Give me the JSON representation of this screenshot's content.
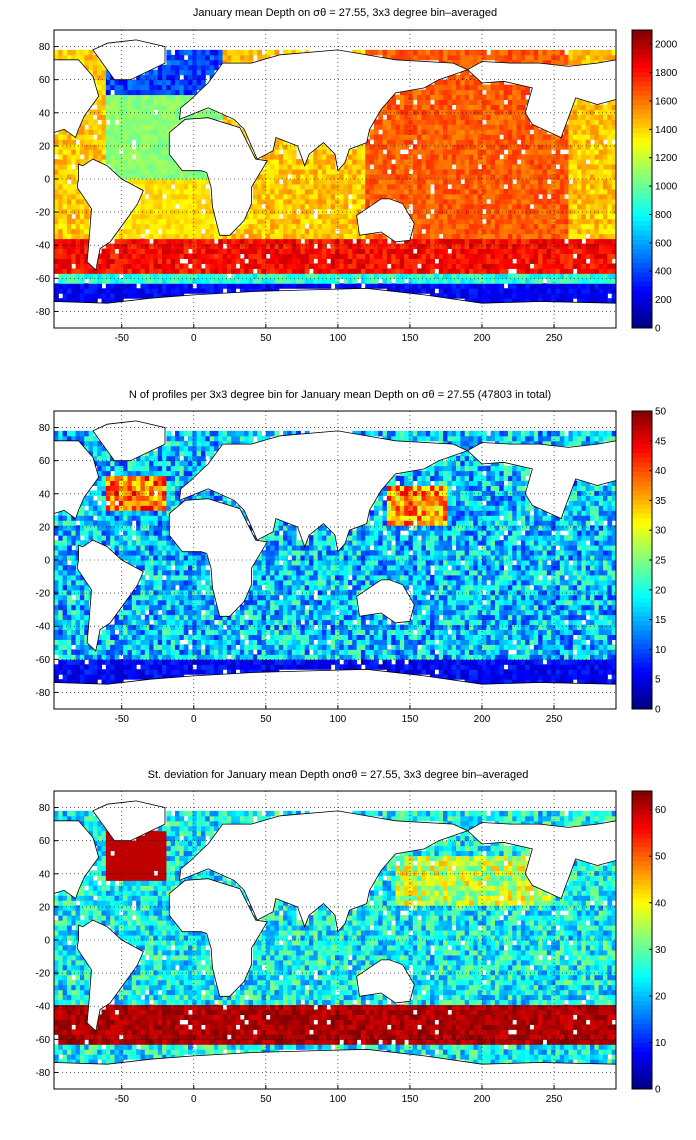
{
  "colors": {
    "land": "#ffffff",
    "coastline": "#000000",
    "frame": "#000000",
    "grid": "#000000"
  },
  "colormap": "jet",
  "chart_data": [
    {
      "type": "heatmap",
      "title": "January mean Depth on σθ = 27.55, 3x3 degree bin–averaged",
      "x_ticks": [
        "-50",
        "0",
        "50",
        "100",
        "150",
        "200",
        "250"
      ],
      "x_tick_values": [
        -50,
        0,
        50,
        100,
        150,
        200,
        250
      ],
      "y_ticks": [
        "80",
        "60",
        "40",
        "20",
        "0",
        "-20",
        "-40",
        "-60",
        "-80"
      ],
      "y_tick_values": [
        80,
        60,
        40,
        20,
        0,
        -20,
        -40,
        -60,
        -80
      ],
      "xlim": [
        -97,
        293
      ],
      "ylim": [
        -90,
        90
      ],
      "colorbar_ticks": [
        "0",
        "200",
        "400",
        "600",
        "800",
        "1000",
        "1200",
        "1400",
        "1600",
        "1800",
        "2000"
      ],
      "colorbar_values": [
        0,
        200,
        400,
        600,
        800,
        1000,
        1200,
        1400,
        1600,
        1800,
        2000
      ],
      "clim": [
        0,
        2100
      ],
      "bin_size_deg": 3,
      "field": "depth",
      "grid": true
    },
    {
      "type": "heatmap",
      "title": "N of profiles per 3x3 degree bin for January mean Depth on σθ = 27.55 (47803 in total)",
      "x_ticks": [
        "-50",
        "0",
        "50",
        "100",
        "150",
        "200",
        "250"
      ],
      "x_tick_values": [
        -50,
        0,
        50,
        100,
        150,
        200,
        250
      ],
      "y_ticks": [
        "80",
        "60",
        "40",
        "20",
        "0",
        "-20",
        "-40",
        "-60",
        "-80"
      ],
      "y_tick_values": [
        80,
        60,
        40,
        20,
        0,
        -20,
        -40,
        -60,
        -80
      ],
      "xlim": [
        -97,
        293
      ],
      "ylim": [
        -90,
        90
      ],
      "colorbar_ticks": [
        "0",
        "5",
        "10",
        "15",
        "20",
        "25",
        "30",
        "35",
        "40",
        "45",
        "50"
      ],
      "colorbar_values": [
        0,
        5,
        10,
        15,
        20,
        25,
        30,
        35,
        40,
        45,
        50
      ],
      "clim": [
        0,
        50
      ],
      "total_profiles": 47803,
      "bin_size_deg": 3,
      "field": "count",
      "grid": true
    },
    {
      "type": "heatmap",
      "title": "St. deviation for January mean Depth onσθ = 27.55, 3x3 degree bin–averaged",
      "x_ticks": [
        "-50",
        "0",
        "50",
        "100",
        "150",
        "200",
        "250"
      ],
      "x_tick_values": [
        -50,
        0,
        50,
        100,
        150,
        200,
        250
      ],
      "y_ticks": [
        "80",
        "60",
        "40",
        "20",
        "0",
        "-20",
        "-40",
        "-60",
        "-80"
      ],
      "y_tick_values": [
        80,
        60,
        40,
        20,
        0,
        -20,
        -40,
        -60,
        -80
      ],
      "xlim": [
        -97,
        293
      ],
      "ylim": [
        -90,
        90
      ],
      "colorbar_ticks": [
        "0",
        "10",
        "20",
        "30",
        "40",
        "50",
        "60"
      ],
      "colorbar_values": [
        0,
        10,
        20,
        30,
        40,
        50,
        60
      ],
      "clim": [
        0,
        64
      ],
      "bin_size_deg": 3,
      "field": "std",
      "grid": true
    }
  ]
}
